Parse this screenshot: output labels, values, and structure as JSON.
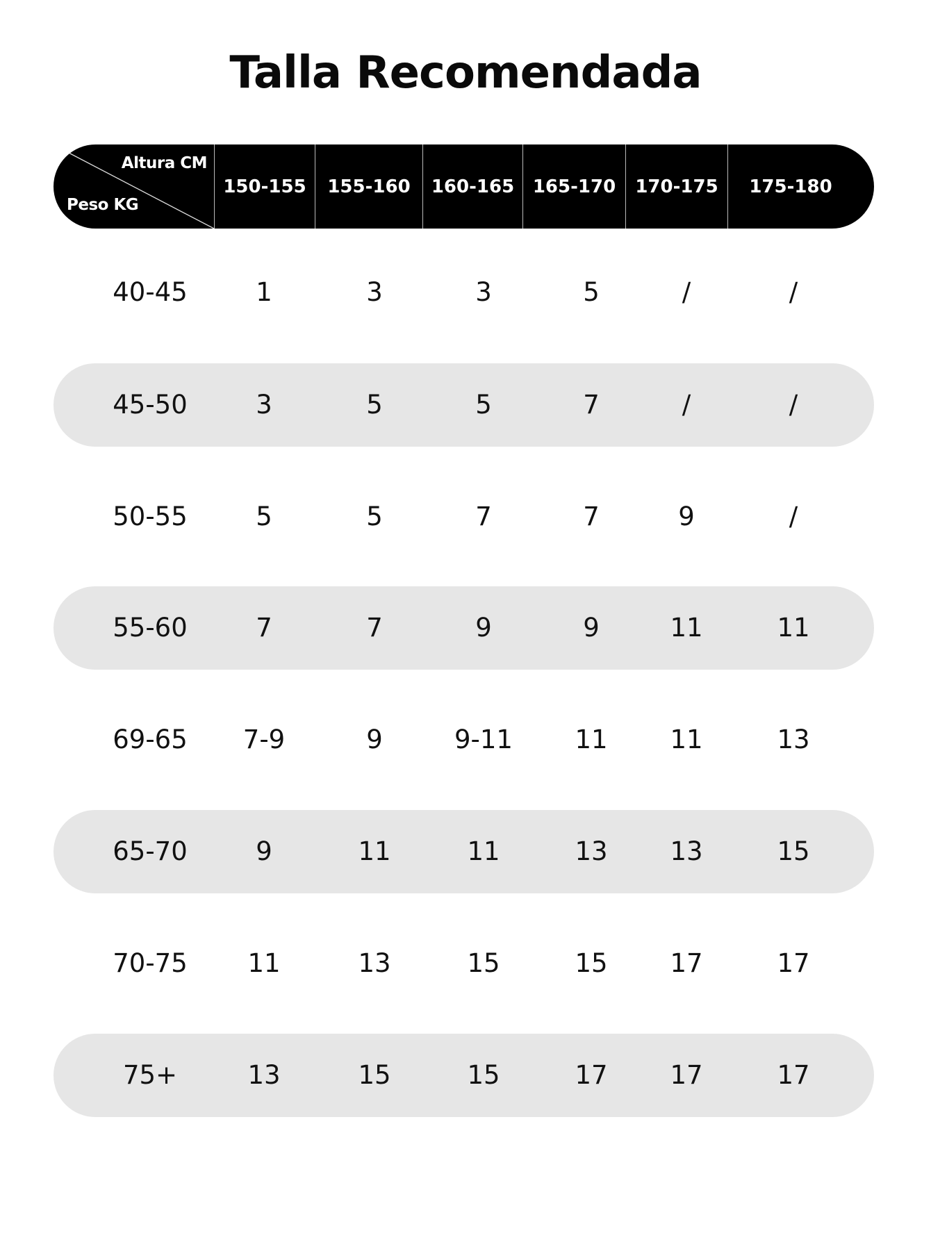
{
  "title": "Talla Recomendada",
  "header": {
    "height_label": "Altura CM",
    "weight_label": "Peso KG",
    "columns": [
      "150-155",
      "155-160",
      "160-165",
      "165-170",
      "170-175",
      "175-180"
    ]
  },
  "rows": [
    {
      "weight": "40-45",
      "sizes": [
        "1",
        "3",
        "3",
        "5",
        "/",
        "/"
      ]
    },
    {
      "weight": "45-50",
      "sizes": [
        "3",
        "5",
        "5",
        "7",
        "/",
        "/"
      ]
    },
    {
      "weight": "50-55",
      "sizes": [
        "5",
        "5",
        "7",
        "7",
        "9",
        "/"
      ]
    },
    {
      "weight": "55-60",
      "sizes": [
        "7",
        "7",
        "9",
        "9",
        "11",
        "11"
      ]
    },
    {
      "weight": "69-65",
      "sizes": [
        "7-9",
        "9",
        "9-11",
        "11",
        "11",
        "13"
      ]
    },
    {
      "weight": "65-70",
      "sizes": [
        "9",
        "11",
        "11",
        "13",
        "13",
        "15"
      ]
    },
    {
      "weight": "70-75",
      "sizes": [
        "11",
        "13",
        "15",
        "15",
        "17",
        "17"
      ]
    },
    {
      "weight": "75+",
      "sizes": [
        "13",
        "15",
        "15",
        "17",
        "17",
        "17"
      ]
    }
  ],
  "colors": {
    "header_bg": "#000000",
    "stripe": "#e6e6e6",
    "text": "#111111"
  }
}
